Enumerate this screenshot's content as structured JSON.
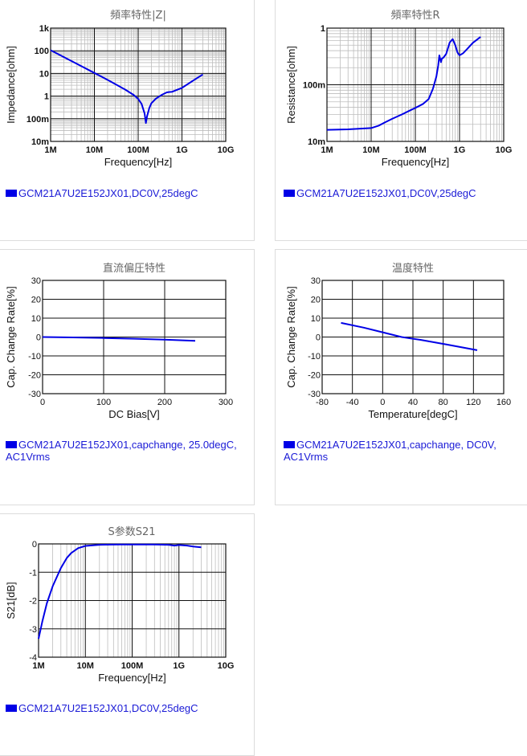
{
  "panels": [
    {
      "title": "頻率特性|Z|",
      "legend": "GCM21A7U2E152JX01,DC0V,25degC",
      "chart_data": {
        "type": "line",
        "xscale": "log",
        "yscale": "log",
        "xlabel": "Frequency[Hz]",
        "ylabel": "Impedance[ohm]",
        "xlim": [
          1000000,
          10000000000
        ],
        "ylim": [
          0.01,
          1000
        ],
        "xticks": [
          [
            "1M",
            1000000
          ],
          [
            "10M",
            10000000
          ],
          [
            "100M",
            100000000
          ],
          [
            "1G",
            1000000000
          ],
          [
            "10G",
            10000000000
          ]
        ],
        "yticks": [
          [
            "1k",
            1000
          ],
          [
            "100",
            100
          ],
          [
            "10",
            10
          ],
          [
            "1",
            1
          ],
          [
            "100m",
            0.1
          ],
          [
            "10m",
            0.01
          ]
        ],
        "grid": true,
        "series": [
          {
            "name": "GCM21A7U2E152JX01,DC0V,25degC",
            "color": "#0000e6",
            "x": [
              1000000,
              2000000,
              5000000,
              10000000,
              20000000,
              50000000,
              80000000,
              100000000,
              120000000,
              140000000,
              150000000,
              160000000,
              180000000,
              200000000,
              250000000,
              300000000,
              350000000,
              400000000,
              450000000,
              500000000,
              600000000,
              700000000,
              1000000000,
              2000000000,
              3000000000
            ],
            "y": [
              106,
              53,
              21,
              10.5,
              5.2,
              1.95,
              1.1,
              0.75,
              0.45,
              0.17,
              0.065,
              0.13,
              0.3,
              0.48,
              0.75,
              0.95,
              1.15,
              1.3,
              1.45,
              1.5,
              1.55,
              1.75,
              2.3,
              5.5,
              9
            ]
          }
        ]
      }
    },
    {
      "title": "頻率特性R",
      "legend": "GCM21A7U2E152JX01,DC0V,25degC",
      "chart_data": {
        "type": "line",
        "xscale": "log",
        "yscale": "log",
        "xlabel": "Frequency[Hz]",
        "ylabel": "Resistance[ohm]",
        "xlim": [
          1000000,
          10000000000
        ],
        "ylim": [
          0.01,
          1
        ],
        "xticks": [
          [
            "1M",
            1000000
          ],
          [
            "10M",
            10000000
          ],
          [
            "100M",
            100000000
          ],
          [
            "1G",
            1000000000
          ],
          [
            "10G",
            10000000000
          ]
        ],
        "yticks": [
          [
            "1",
            1
          ],
          [
            "100m",
            0.1
          ],
          [
            "10m",
            0.01
          ]
        ],
        "grid": true,
        "series": [
          {
            "name": "GCM21A7U2E152JX01,DC0V,25degC",
            "color": "#0000e6",
            "x": [
              1000000,
              3000000,
              10000000,
              15000000,
              20000000,
              30000000,
              50000000,
              80000000,
              100000000,
              150000000,
              200000000,
              250000000,
              300000000,
              330000000,
              350000000,
              380000000,
              400000000,
              430000000,
              500000000,
              600000000,
              700000000,
              800000000,
              900000000,
              1000000000,
              1200000000,
              1500000000,
              2000000000,
              3000000000
            ],
            "y": [
              0.016,
              0.0163,
              0.0172,
              0.019,
              0.0215,
              0.025,
              0.03,
              0.036,
              0.039,
              0.046,
              0.056,
              0.085,
              0.14,
              0.22,
              0.33,
              0.25,
              0.29,
              0.3,
              0.35,
              0.56,
              0.64,
              0.5,
              0.37,
              0.33,
              0.36,
              0.43,
              0.55,
              0.7
            ]
          }
        ]
      }
    },
    {
      "title": "直流偏圧特性",
      "legend": "GCM21A7U2E152JX01,capchange, 25.0degC, AC1Vrms",
      "chart_data": {
        "type": "line",
        "xscale": "linear",
        "yscale": "linear",
        "xlabel": "DC Bias[V]",
        "ylabel": "Cap. Change Rate[%]",
        "xlim": [
          0,
          300
        ],
        "ylim": [
          -30,
          30
        ],
        "xticks": [
          [
            "0",
            0
          ],
          [
            "100",
            100
          ],
          [
            "200",
            200
          ],
          [
            "300",
            300
          ]
        ],
        "yticks": [
          [
            "30",
            30
          ],
          [
            "20",
            20
          ],
          [
            "10",
            10
          ],
          [
            "0",
            0
          ],
          [
            "-10",
            -10
          ],
          [
            "-20",
            -20
          ],
          [
            "-30",
            -30
          ]
        ],
        "grid": true,
        "series": [
          {
            "name": "GCM21A7U2E152JX01,capchange, 25.0degC, AC1Vrms",
            "color": "#0000e6",
            "x": [
              0,
              50,
              100,
              150,
              200,
              250
            ],
            "y": [
              0,
              -0.2,
              -0.5,
              -0.9,
              -1.4,
              -2.0
            ]
          }
        ]
      }
    },
    {
      "title": "温度特性",
      "legend": "GCM21A7U2E152JX01,capchange, DC0V, AC1Vrms",
      "chart_data": {
        "type": "line",
        "xscale": "linear",
        "yscale": "linear",
        "xlabel": "Temperature[degC]",
        "ylabel": "Cap. Change Rate[%]",
        "xlim": [
          -80,
          160
        ],
        "ylim": [
          -30,
          30
        ],
        "xticks": [
          [
            "-80",
            -80
          ],
          [
            "-40",
            -40
          ],
          [
            "0",
            0
          ],
          [
            "40",
            40
          ],
          [
            "80",
            80
          ],
          [
            "120",
            120
          ],
          [
            "160",
            160
          ]
        ],
        "yticks": [
          [
            "30",
            30
          ],
          [
            "20",
            20
          ],
          [
            "10",
            10
          ],
          [
            "0",
            0
          ],
          [
            "-10",
            -10
          ],
          [
            "-20",
            -20
          ],
          [
            "-30",
            -30
          ]
        ],
        "grid": true,
        "series": [
          {
            "name": "GCM21A7U2E152JX01,capchange, DC0V, AC1Vrms",
            "color": "#0000e6",
            "x": [
              -55,
              -25,
              0,
              25,
              50,
              85,
              105,
              125
            ],
            "y": [
              7.5,
              5,
              2.5,
              0,
              -1.5,
              -4,
              -5.5,
              -7
            ]
          }
        ]
      }
    },
    {
      "title": "S参数S21",
      "legend": "GCM21A7U2E152JX01,DC0V,25degC",
      "chart_data": {
        "type": "line",
        "xscale": "log",
        "yscale": "linear",
        "xlabel": "Frequency[Hz]",
        "ylabel": "S21[dB]",
        "xlim": [
          1000000,
          10000000000
        ],
        "ylim": [
          -4,
          0
        ],
        "xticks": [
          [
            "1M",
            1000000
          ],
          [
            "10M",
            10000000
          ],
          [
            "100M",
            100000000
          ],
          [
            "1G",
            1000000000
          ],
          [
            "10G",
            10000000000
          ]
        ],
        "yticks": [
          [
            "0",
            0
          ],
          [
            "-1",
            -1
          ],
          [
            "-2",
            -2
          ],
          [
            "-3",
            -3
          ],
          [
            "-4",
            -4
          ]
        ],
        "grid": true,
        "series": [
          {
            "name": "GCM21A7U2E152JX01,DC0V,25degC",
            "color": "#0000e6",
            "x": [
              1000000,
              1200000,
              1500000,
              2000000,
              3000000,
              4000000,
              5000000,
              7000000,
              10000000,
              20000000,
              50000000,
              100000000,
              300000000,
              600000000,
              800000000,
              1000000000,
              1500000000,
              2000000000,
              3000000000
            ],
            "y": [
              -3.35,
              -2.75,
              -2.1,
              -1.5,
              -0.85,
              -0.5,
              -0.32,
              -0.15,
              -0.07,
              -0.03,
              -0.02,
              -0.02,
              -0.02,
              -0.03,
              -0.06,
              -0.04,
              -0.06,
              -0.09,
              -0.12
            ]
          }
        ]
      }
    }
  ]
}
